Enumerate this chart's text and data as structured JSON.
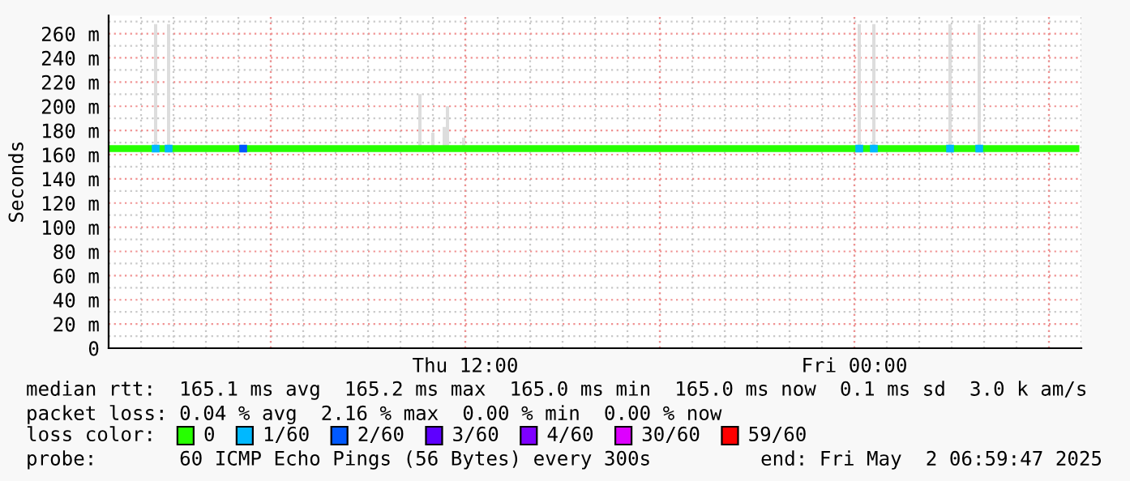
{
  "chart_data": {
    "type": "line",
    "ylabel": "Seconds",
    "xlim": [
      "2025-05-01T01:00",
      "2025-05-02T07:00"
    ],
    "xticks": [
      {
        "value": "2025-05-01T06:00",
        "label": null
      },
      {
        "value": "2025-05-01T12:00",
        "label": "Thu 12:00"
      },
      {
        "value": "2025-05-01T18:00",
        "label": null
      },
      {
        "value": "2025-05-02T00:00",
        "label": "Fri 00:00"
      },
      {
        "value": "2025-05-02T06:00",
        "label": null
      }
    ],
    "ylim": [
      0,
      275
    ],
    "yticks": [
      0,
      {
        "value": 20,
        "label": "20 m"
      },
      {
        "value": 40,
        "label": "40 m"
      },
      {
        "value": 60,
        "label": "60 m"
      },
      {
        "value": 80,
        "label": "80 m"
      },
      {
        "value": 100,
        "label": "100 m"
      },
      {
        "value": 120,
        "label": "120 m"
      },
      {
        "value": 140,
        "label": "140 m"
      },
      {
        "value": 160,
        "label": "160 m"
      },
      {
        "value": 180,
        "label": "180 m"
      },
      {
        "value": 200,
        "label": "200 m"
      },
      {
        "value": 220,
        "label": "220 m"
      },
      {
        "value": 240,
        "label": "240 m"
      },
      {
        "value": 260,
        "label": "260 m"
      }
    ],
    "grid": true,
    "legend": "bottom",
    "legend_title": "loss color:",
    "series": [
      {
        "type": "bar",
        "color": "#dddddd",
        "x": [
          "2025-05-01T02:27",
          "2025-05-01T02:51",
          "2025-05-01T10:36",
          "2025-05-01T11:00",
          "2025-05-01T11:21",
          "2025-05-01T11:27",
          "2025-05-01T11:57",
          "2025-05-02T00:09",
          "2025-05-02T00:36",
          "2025-05-02T02:57",
          "2025-05-02T03:51"
        ],
        "base": [
          165,
          165,
          165,
          165,
          165,
          165,
          165,
          165,
          165,
          165,
          165
        ],
        "values": [
          103,
          103,
          45,
          13,
          18,
          35,
          9,
          103,
          103,
          103,
          103
        ]
      },
      {
        "name": "0",
        "color": "#26ff00",
        "x": [
          "2025-05-01T01:00",
          "2025-05-01T02:00",
          "2025-05-01T03:00",
          "2025-05-01T04:00",
          "2025-05-01T05:00",
          "2025-05-01T06:00",
          "2025-05-01T07:00",
          "2025-05-01T08:00",
          "2025-05-01T09:00",
          "2025-05-01T10:00",
          "2025-05-01T11:00",
          "2025-05-01T12:00",
          "2025-05-01T13:00",
          "2025-05-01T14:00",
          "2025-05-01T15:00",
          "2025-05-01T16:00",
          "2025-05-01T17:00",
          "2025-05-01T18:00",
          "2025-05-01T19:00",
          "2025-05-01T20:00",
          "2025-05-01T21:00",
          "2025-05-01T22:00",
          "2025-05-01T23:00",
          "2025-05-02T00:00",
          "2025-05-02T01:00",
          "2025-05-02T02:00",
          "2025-05-02T03:00",
          "2025-05-02T04:00",
          "2025-05-02T05:00",
          "2025-05-02T06:00",
          "2025-05-02T06:50"
        ],
        "values": [
          165,
          165,
          165,
          165,
          165,
          165,
          165,
          165,
          165,
          165,
          165,
          165,
          165,
          165,
          165,
          165,
          165,
          165,
          165,
          165,
          165,
          165,
          165,
          165,
          165,
          165,
          165,
          165,
          165,
          165,
          165
        ]
      },
      {
        "type": "scatter",
        "name": "1/60",
        "color": "#00b8ff",
        "x": [
          "2025-05-01T02:27",
          "2025-05-01T02:51",
          "2025-05-02T00:09",
          "2025-05-02T00:36",
          "2025-05-02T02:57",
          "2025-05-02T03:51"
        ],
        "values": [
          165,
          165,
          165,
          165,
          165,
          165
        ]
      },
      {
        "type": "scatter",
        "name": "2/60",
        "color": "#0059ff",
        "x": [
          "2025-05-01T05:09"
        ],
        "values": [
          165
        ]
      },
      {
        "type": "scatter",
        "name": "3/60",
        "color": "#5e00ff"
      },
      {
        "type": "scatter",
        "name": "4/60",
        "color": "#7e00ff"
      },
      {
        "type": "scatter",
        "name": "30/60",
        "color": "#dd00ff"
      },
      {
        "type": "scatter",
        "name": "59/60",
        "color": "#ff0000"
      }
    ],
    "annotations": [
      "median rtt:  165.1 ms avg  165.2 ms max  165.0 ms min  165.0 ms now  0.1 ms sd  3.0 k am/s",
      "packet loss: 0.04 % avg  2.16 % max  0.00 % min  0.00 % now",
      "probe:       60 ICMP Echo Pings (56 Bytes) every 300s",
      "end: Fri May  2 06:59:47 2025"
    ]
  }
}
